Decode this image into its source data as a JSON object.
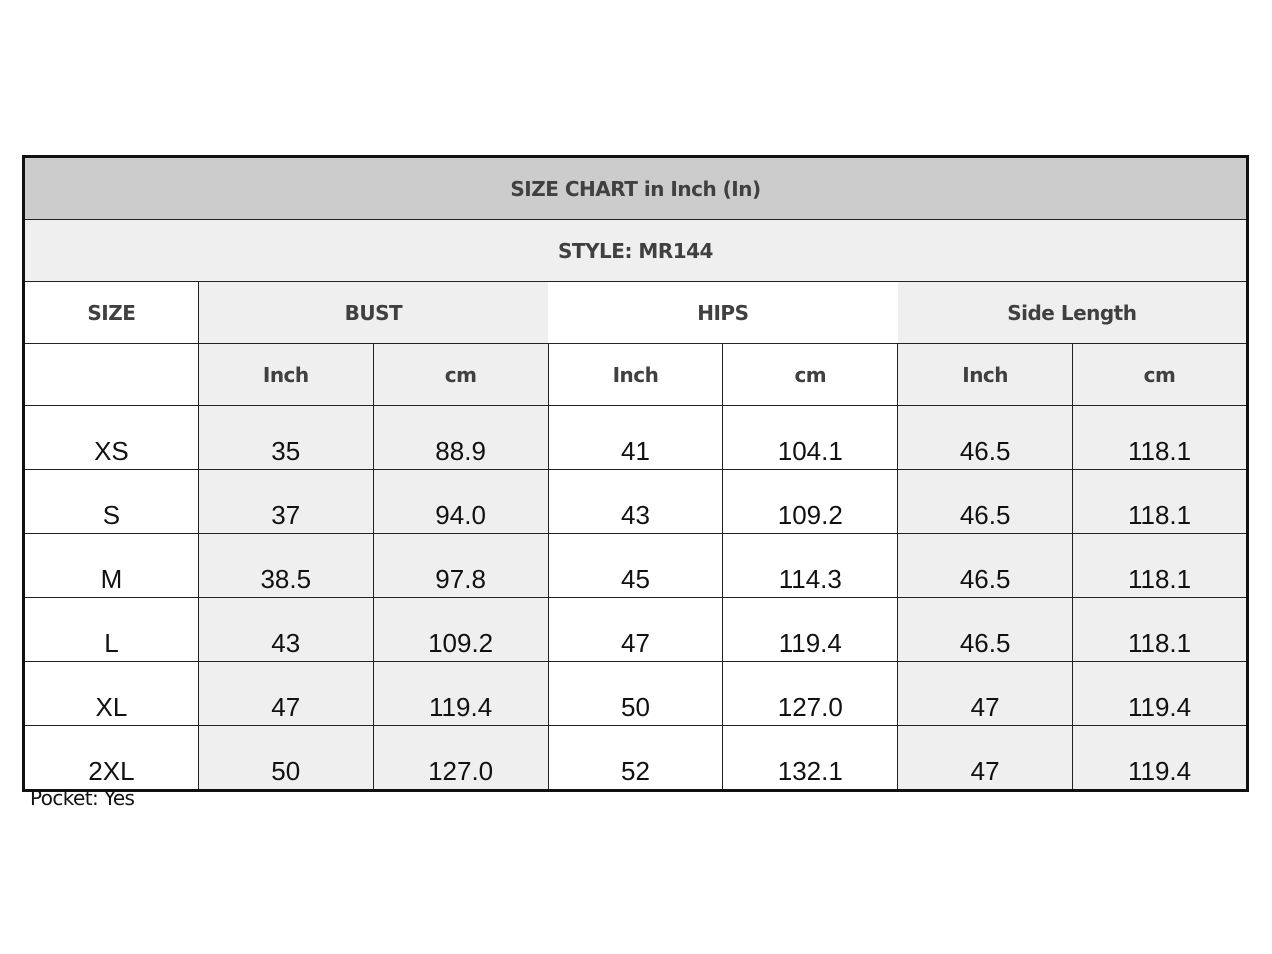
{
  "title": "SIZE CHART in Inch (In)",
  "style": "STYLE: MR144",
  "columns": {
    "size": "SIZE",
    "groups": [
      "BUST",
      "HIPS",
      "Side Length"
    ],
    "units": [
      "Inch",
      "cm",
      "Inch",
      "cm",
      "Inch",
      "cm"
    ]
  },
  "rows": [
    [
      "XS",
      "35",
      "88.9",
      "41",
      "104.1",
      "46.5",
      "118.1"
    ],
    [
      "S",
      "37",
      "94.0",
      "43",
      "109.2",
      "46.5",
      "118.1"
    ],
    [
      "M",
      "38.5",
      "97.8",
      "45",
      "114.3",
      "46.5",
      "118.1"
    ],
    [
      "L",
      "43",
      "109.2",
      "47",
      "119.4",
      "46.5",
      "118.1"
    ],
    [
      "XL",
      "47",
      "119.4",
      "50",
      "127.0",
      "47",
      "119.4"
    ],
    [
      "2XL",
      "50",
      "127.0",
      "52",
      "132.1",
      "47",
      "119.4"
    ]
  ],
  "note": "Pocket: Yes",
  "colors": {
    "title_bg": "#cccccc",
    "light_bg": "#efefef",
    "border": "#222222"
  }
}
